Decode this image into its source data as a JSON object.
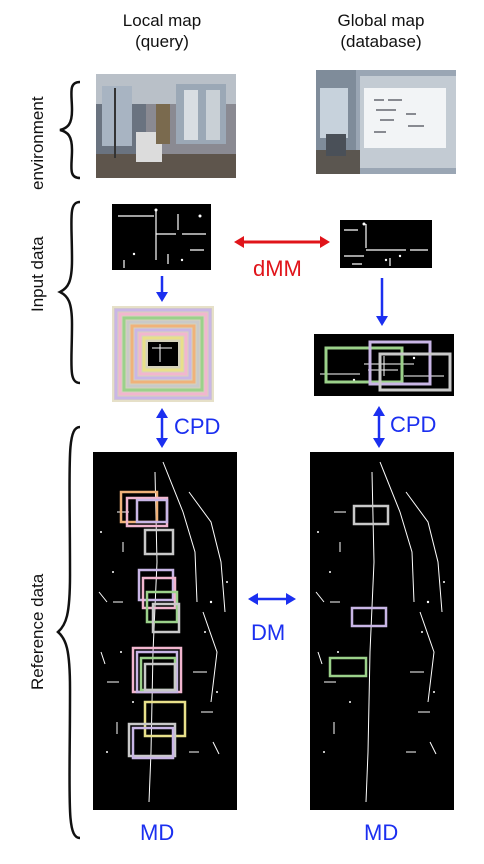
{
  "columns": {
    "local": {
      "title": "Local map",
      "subtitle": "(query)"
    },
    "global": {
      "title": "Global map",
      "subtitle": "(database)"
    }
  },
  "rows": {
    "environment": "environment",
    "input": "Input data",
    "reference": "Reference data"
  },
  "labels": {
    "dmm": "dMM",
    "cpd_left": "CPD",
    "cpd_right": "CPD",
    "dm": "DM",
    "md_left": "MD",
    "md_right": "MD"
  },
  "colors": {
    "blue": "#1b2ff0",
    "red": "#e0141a",
    "box_green": "#9bd18a",
    "box_violet": "#c9b6e6",
    "box_grey": "#c9c9c9",
    "box_orange": "#f0b27a",
    "box_pink": "#f2b6cf",
    "box_yellow": "#e8e08a"
  }
}
